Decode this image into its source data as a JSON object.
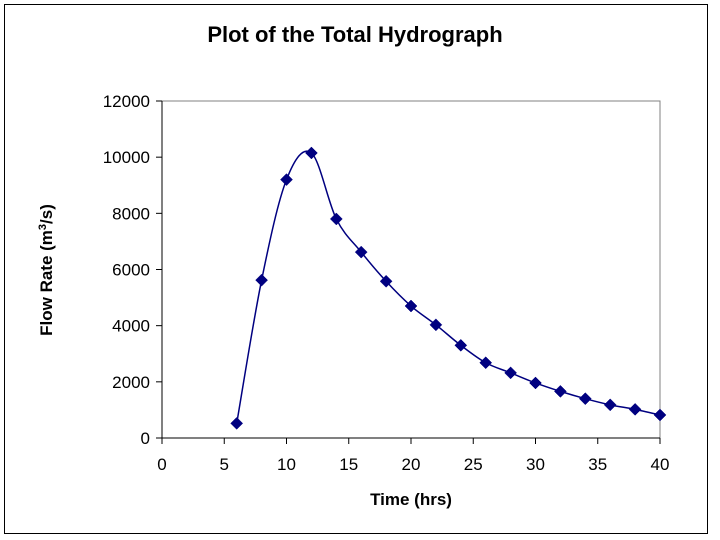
{
  "chart_data": {
    "type": "scatter",
    "title": "Plot of the Total Hydrograph",
    "xlabel": "Time (hrs)",
    "ylabel_main": "Flow Rate  (m",
    "ylabel_sup": "3",
    "ylabel_end": "/s)",
    "xlim": [
      0,
      40
    ],
    "ylim": [
      0,
      12000
    ],
    "xticks": [
      0,
      5,
      10,
      15,
      20,
      25,
      30,
      35,
      40
    ],
    "yticks": [
      0,
      2000,
      4000,
      6000,
      8000,
      10000,
      12000
    ],
    "grid": false,
    "legend": "none",
    "smoothed_line": true,
    "marker": "diamond",
    "color": "#000080",
    "series": [
      {
        "x": [
          6,
          8,
          10,
          12,
          14,
          16,
          18,
          20,
          22,
          24,
          26,
          28,
          30,
          32,
          34,
          36,
          38,
          40
        ],
        "y": [
          520,
          5620,
          9200,
          10150,
          7800,
          6620,
          5580,
          4700,
          4030,
          3300,
          2680,
          2320,
          1960,
          1660,
          1400,
          1180,
          1020,
          820
        ]
      }
    ]
  }
}
